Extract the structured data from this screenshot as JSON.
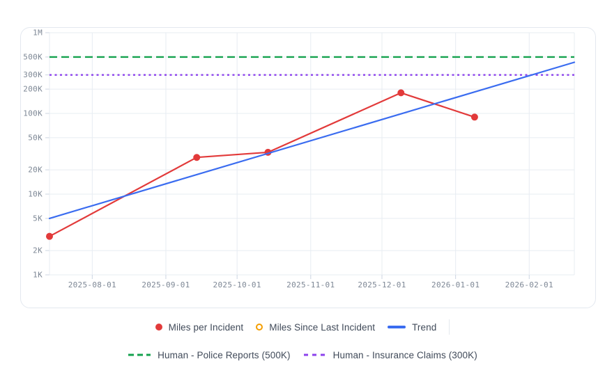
{
  "colors": {
    "red": "#e23a3a",
    "orange": "#f59e00",
    "blue": "#3a6cf0",
    "green": "#15a24e",
    "purple": "#8c42ec",
    "grid": "#e7ecf2",
    "tick": "#ccd5e2",
    "axis_label": "#7d8795",
    "legend_text": "#404a59",
    "card_border": "#e3e8ef"
  },
  "legend": {
    "series": [
      {
        "label": "Miles per Incident",
        "marker": "filled-dot",
        "color": "#e23a3a"
      },
      {
        "label": "Miles Since Last Incident",
        "marker": "open-circle",
        "color": "#f59e00"
      },
      {
        "label": "Trend",
        "marker": "solid-line",
        "color": "#3a6cf0"
      }
    ],
    "references": [
      {
        "label": "Human - Police Reports (500K)",
        "marker": "dashed-line",
        "color": "#15a24e"
      },
      {
        "label": "Human - Insurance Claims (300K)",
        "marker": "dashed-line",
        "color": "#8c42ec"
      }
    ]
  },
  "chart_data": {
    "type": "line",
    "title": "",
    "xlabel": "",
    "ylabel": "",
    "y_scale": "log",
    "y_min": 1000,
    "y_max": 1000000,
    "x_min": "2025-07-14",
    "x_max": "2026-02-20",
    "grid": true,
    "legend_position": "bottom",
    "y_ticks": [
      {
        "label": "1K",
        "value": 1000
      },
      {
        "label": "2K",
        "value": 2000
      },
      {
        "label": "5K",
        "value": 5000
      },
      {
        "label": "10K",
        "value": 10000
      },
      {
        "label": "20K",
        "value": 20000
      },
      {
        "label": "50K",
        "value": 50000
      },
      {
        "label": "100K",
        "value": 100000
      },
      {
        "label": "200K",
        "value": 200000
      },
      {
        "label": "300K",
        "value": 300000
      },
      {
        "label": "500K",
        "value": 500000
      },
      {
        "label": "1M",
        "value": 1000000
      }
    ],
    "x_ticks": [
      {
        "label": "2025-08-01",
        "value": "2025-08-01"
      },
      {
        "label": "2025-09-01",
        "value": "2025-09-01"
      },
      {
        "label": "2025-10-01",
        "value": "2025-10-01"
      },
      {
        "label": "2025-11-01",
        "value": "2025-11-01"
      },
      {
        "label": "2025-12-01",
        "value": "2025-12-01"
      },
      {
        "label": "2026-01-01",
        "value": "2026-01-01"
      },
      {
        "label": "2026-02-01",
        "value": "2026-02-01"
      }
    ],
    "series": [
      {
        "name": "Miles per Incident",
        "color": "#e23a3a",
        "marker": "filled-dot",
        "points": [
          {
            "x": "2025-07-14",
            "y": 3000
          },
          {
            "x": "2025-09-14",
            "y": 28500
          },
          {
            "x": "2025-10-14",
            "y": 33000
          },
          {
            "x": "2025-12-09",
            "y": 180000
          },
          {
            "x": "2026-01-09",
            "y": 90000
          }
        ]
      },
      {
        "name": "Miles Since Last Incident",
        "color": "#f59e00",
        "marker": "open-circle",
        "points": []
      },
      {
        "name": "Trend",
        "color": "#3a6cf0",
        "marker": "none",
        "points": [
          {
            "x": "2025-07-14",
            "y": 5000
          },
          {
            "x": "2026-02-20",
            "y": 430000
          }
        ]
      }
    ],
    "reference_lines": [
      {
        "label": "Human - Police Reports (500K)",
        "value": 500000,
        "color": "#15a24e",
        "dash": "11 6"
      },
      {
        "label": "Human - Insurance Claims (300K)",
        "value": 300000,
        "color": "#8c42ec",
        "dash": "3 4.5"
      }
    ]
  }
}
